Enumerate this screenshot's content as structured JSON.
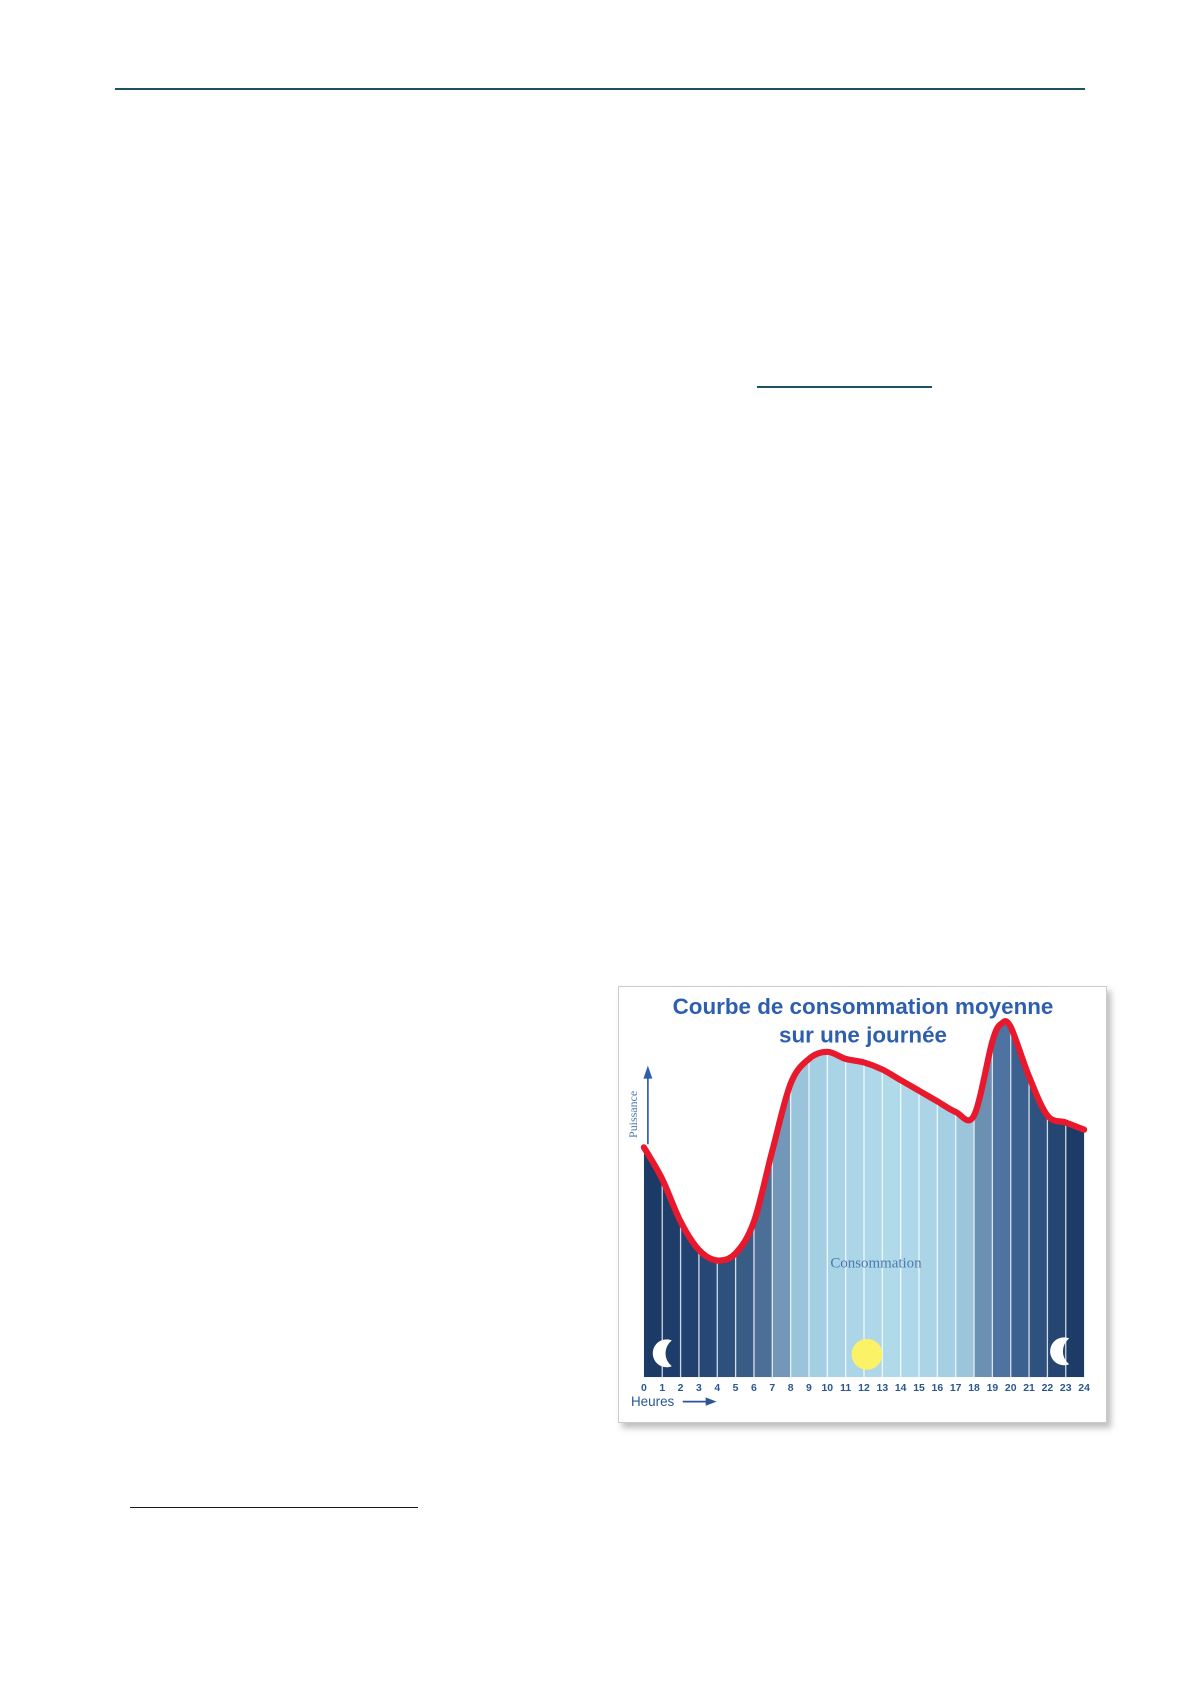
{
  "page": {
    "top_rule_color": "#1f5062",
    "link_rule_color": "#1f5062",
    "footnote_rule_color": "#1a1a1a"
  },
  "chart": {
    "title_line1": "Courbe de consommation moyenne",
    "title_line2": "sur une journée",
    "y_axis_label": "Puissance",
    "x_axis_label": "Heures",
    "area_label": "Consommation",
    "icons": [
      "moon-icon",
      "sun-icon",
      "moon-icon"
    ],
    "colors": {
      "title": "#2e5fae",
      "axis_text": "#2a5793",
      "serif_text": "#4d79ab",
      "curve": "#e8192c",
      "sun": "#fbf267",
      "moon": "#ffffff",
      "separator": "rgba(255,255,255,0.8)",
      "border": "#c9ccce"
    },
    "bar_colors": [
      "#1c3a66",
      "#1e3d6a",
      "#214170",
      "#274876",
      "#2e507c",
      "#395c86",
      "#4c6f97",
      "#7397b9",
      "#9ac4da",
      "#a4cfe2",
      "#a9d4e6",
      "#acd6e8",
      "#aed8ea",
      "#b0d9ea",
      "#aed7e9",
      "#abd4e7",
      "#a5d0e4",
      "#9ac5db",
      "#6c90b2",
      "#4e73a0",
      "#3c6090",
      "#2f5180",
      "#254670",
      "#1d3b67"
    ]
  },
  "chart_data": {
    "type": "area",
    "title": "Courbe de consommation moyenne sur une journée",
    "xlabel": "Heures",
    "ylabel": "Puissance",
    "x": [
      0,
      1,
      2,
      3,
      4,
      5,
      6,
      7,
      8,
      9,
      10,
      11,
      12,
      13,
      14,
      15,
      16,
      17,
      18,
      19,
      19.5,
      20,
      21,
      22,
      23,
      24
    ],
    "values": [
      65,
      56,
      44,
      36,
      33,
      35,
      44,
      64,
      83,
      90,
      92,
      90,
      89,
      87,
      84,
      81,
      78,
      75,
      74,
      95,
      100,
      99,
      85,
      74,
      72,
      70
    ],
    "x_ticks": [
      "0",
      "1",
      "2",
      "3",
      "4",
      "5",
      "6",
      "7",
      "8",
      "9",
      "10",
      "11",
      "12",
      "13",
      "14",
      "15",
      "16",
      "17",
      "18",
      "19",
      "20",
      "21",
      "22",
      "23",
      "24"
    ],
    "ylim": [
      0,
      108
    ],
    "grid": "vertical-white-hour-separators",
    "legend": "none",
    "annotations": [
      "Consommation"
    ],
    "notes": "Night hours shaded dark navy with moon icons (0h and 24h), midday light blue with sun icon (12-13h); red curve = average daily power consumption"
  }
}
